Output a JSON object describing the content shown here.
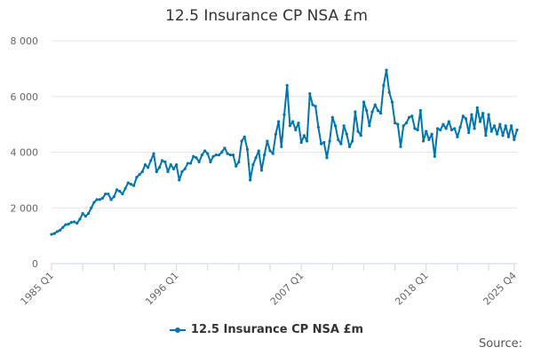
{
  "chart_data": {
    "type": "line",
    "title": "12.5 Insurance CP NSA £m",
    "xlabel": "",
    "ylabel": "",
    "y_ticks": [
      "0",
      "2 000",
      "4 000",
      "6 000",
      "8 000"
    ],
    "y_tick_values": [
      0,
      2000,
      4000,
      6000,
      8000
    ],
    "ylim": [
      0,
      8000
    ],
    "x_tick_labels": [
      "1985 Q1",
      "1996 Q1",
      "2007 Q1",
      "2018 Q1",
      "2025 Q4"
    ],
    "x_tick_index": [
      0,
      44,
      88,
      132,
      163
    ],
    "grid": "horizontal",
    "legend_position": "bottom",
    "series": [
      {
        "name": "12.5 Insurance CP NSA £m",
        "color": "#0075b0",
        "values": [
          1050,
          1080,
          1150,
          1200,
          1300,
          1400,
          1420,
          1480,
          1500,
          1450,
          1600,
          1800,
          1700,
          1800,
          2000,
          2200,
          2300,
          2300,
          2350,
          2500,
          2500,
          2300,
          2400,
          2650,
          2600,
          2500,
          2700,
          2900,
          2850,
          2800,
          3100,
          3200,
          3300,
          3550,
          3450,
          3700,
          3950,
          3300,
          3450,
          3700,
          3650,
          3300,
          3550,
          3400,
          3550,
          3000,
          3300,
          3400,
          3600,
          3600,
          3850,
          3800,
          3650,
          3900,
          4050,
          3950,
          3650,
          3850,
          3900,
          3900,
          4000,
          4150,
          3950,
          3900,
          3900,
          3500,
          3650,
          4400,
          4550,
          4100,
          3000,
          3550,
          3800,
          4050,
          3350,
          3900,
          4400,
          4050,
          3950,
          4650,
          5100,
          4200,
          5350,
          6400,
          4950,
          5100,
          4800,
          5050,
          4350,
          4600,
          4400,
          6100,
          5700,
          5650,
          4900,
          4300,
          4350,
          3800,
          4400,
          5250,
          4950,
          4450,
          4300,
          4950,
          4650,
          4200,
          4400,
          5450,
          4750,
          4600,
          5800,
          5500,
          4950,
          5450,
          5700,
          5500,
          5400,
          6400,
          6950,
          6150,
          5800,
          5050,
          5000,
          4200,
          4950,
          5050,
          5250,
          5300,
          4850,
          4800,
          5500,
          4400,
          4750,
          4450,
          4650,
          3850,
          4850,
          4800,
          5000,
          4850,
          5100,
          4800,
          4850,
          4550,
          4900,
          5300,
          5200,
          4700,
          5350,
          4850,
          5600,
          5100,
          5400,
          4600,
          5350,
          4750,
          4950,
          4650,
          5000,
          4600,
          4950,
          4550,
          4950,
          4450,
          4800
        ]
      }
    ]
  },
  "source_label": "Source:"
}
